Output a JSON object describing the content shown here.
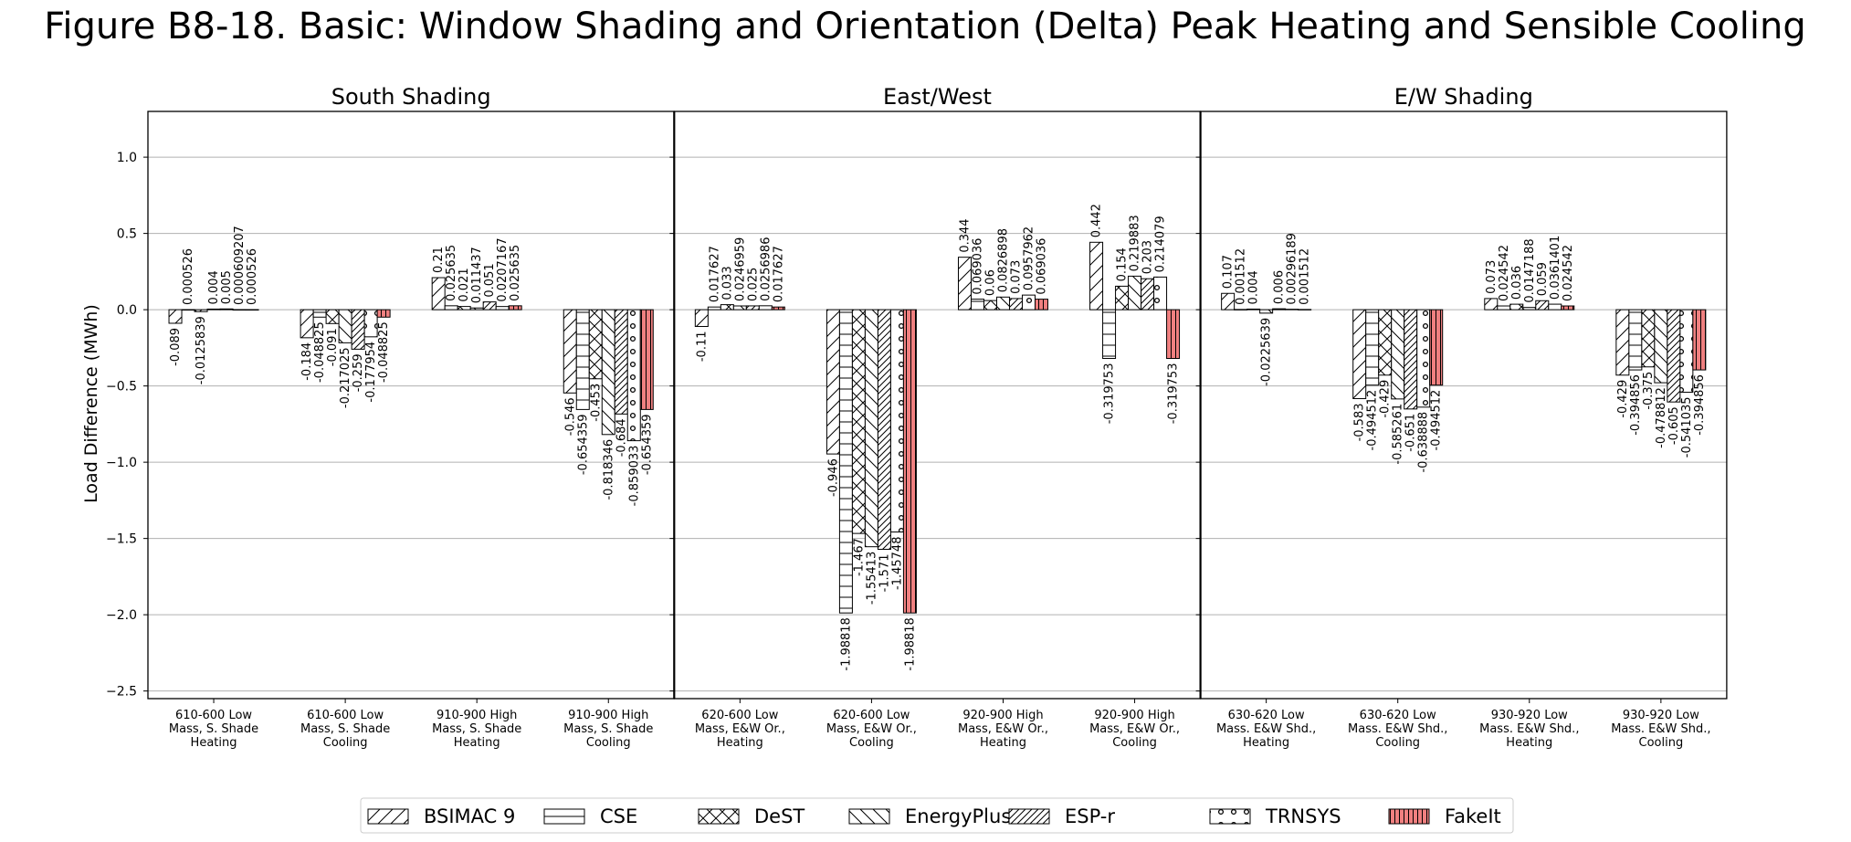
{
  "chart_data": {
    "type": "bar",
    "title": "Figure B8-18. Basic: Window Shading and Orientation (Delta) Peak Heating and Sensible Cooling",
    "ylabel": "Load Difference (MWh)",
    "ylim": [
      -2.55,
      1.3
    ],
    "yticks": [
      "1.0",
      "0.5",
      "0.0",
      "−0.5",
      "−1.0",
      "−1.5",
      "−2.0",
      "−2.5"
    ],
    "ytick_values": [
      1.0,
      0.5,
      0.0,
      -0.5,
      -1.0,
      -1.5,
      -2.0,
      -2.5
    ],
    "grid": true,
    "legend_position": "bottom-center",
    "series": [
      {
        "name": "BSIMAC 9",
        "hatch": "diag-fwd",
        "color": "#ffffff"
      },
      {
        "name": "CSE",
        "hatch": "horizontal",
        "color": "#ffffff"
      },
      {
        "name": "DeST",
        "hatch": "cross-diag",
        "color": "#ffffff"
      },
      {
        "name": "EnergyPlus",
        "hatch": "diag-back",
        "color": "#ffffff"
      },
      {
        "name": "ESP-r",
        "hatch": "diag-fwd-dense",
        "color": "#ffffff"
      },
      {
        "name": "TRNSYS",
        "hatch": "dots",
        "color": "#ffffff"
      },
      {
        "name": "FakeIt",
        "hatch": "vertical",
        "color": "#f08080"
      }
    ],
    "panels": [
      {
        "title": "South Shading",
        "groups": [
          {
            "label": [
              "610-600 Low",
              "Mass, S. Shade",
              "Heating"
            ],
            "values": [
              -0.089,
              0.000526,
              -0.0125839,
              0.004,
              0.005,
              0.000609207,
              0.000526
            ],
            "labels": [
              "-0.089",
              "0.000526",
              "-0.0125839",
              "0.004",
              "0.005",
              "0.000609207",
              "0.000526"
            ]
          },
          {
            "label": [
              "610-600 Low",
              "Mass, S. Shade",
              "Cooling"
            ],
            "values": [
              -0.184,
              -0.048825,
              -0.091,
              -0.217025,
              -0.259,
              -0.177954,
              -0.048825
            ],
            "labels": [
              "-0.184",
              "-0.048825",
              "-0.091",
              "-0.217025",
              "-0.259",
              "-0.177954",
              "-0.048825"
            ]
          },
          {
            "label": [
              "910-900 High",
              "Mass, S. Shade",
              "Heating"
            ],
            "values": [
              0.21,
              0.025635,
              0.021,
              0.011437,
              0.051,
              0.0207167,
              0.025635
            ],
            "labels": [
              "0.21",
              "0.025635",
              "0.021",
              "0.011437",
              "0.051",
              "0.0207167",
              "0.025635"
            ]
          },
          {
            "label": [
              "910-900 High",
              "Mass, S. Shade",
              "Cooling"
            ],
            "values": [
              -0.546,
              -0.654359,
              -0.453,
              -0.818346,
              -0.684,
              -0.859033,
              -0.654359
            ],
            "labels": [
              "-0.546",
              "-0.654359",
              "-0.453",
              "-0.818346",
              "-0.684",
              "-0.859033",
              "-0.654359"
            ]
          }
        ]
      },
      {
        "title": "East/West",
        "groups": [
          {
            "label": [
              "620-600 Low",
              "Mass, E&W Or.,",
              "Heating"
            ],
            "values": [
              -0.11,
              0.017627,
              0.033,
              0.0246959,
              0.025,
              0.0256986,
              0.017627
            ],
            "labels": [
              "-0.11",
              "0.017627",
              "0.033",
              "0.0246959",
              "0.025",
              "0.0256986",
              "0.017627"
            ]
          },
          {
            "label": [
              "620-600 Low",
              "Mass, E&W Or.,",
              "Cooling"
            ],
            "values": [
              -0.946,
              -1.98818,
              -1.467,
              -1.55413,
              -1.571,
              -1.45748,
              -1.98818
            ],
            "labels": [
              "-0.946",
              "-1.98818",
              "-1.467",
              "-1.55413",
              "-1.571",
              "-1.45748",
              "-1.98818"
            ]
          },
          {
            "label": [
              "920-900 High",
              "Mass, E&W Or.,",
              "Heating"
            ],
            "values": [
              0.344,
              0.069036,
              0.06,
              0.0826898,
              0.073,
              0.0957962,
              0.069036
            ],
            "labels": [
              "0.344",
              "0.069036",
              "0.06",
              "0.0826898",
              "0.073",
              "0.0957962",
              "0.069036"
            ]
          },
          {
            "label": [
              "920-900 High",
              "Mass, E&W Or.,",
              "Cooling"
            ],
            "values": [
              0.442,
              -0.319753,
              0.154,
              0.219883,
              0.203,
              0.214079,
              -0.319753
            ],
            "labels": [
              "0.442",
              "-0.319753",
              "0.154",
              "0.219883",
              "0.203",
              "0.214079",
              "-0.319753"
            ]
          }
        ]
      },
      {
        "title": "E/W Shading",
        "groups": [
          {
            "label": [
              "630-620 Low",
              "Mass. E&W Shd.,",
              "Heating"
            ],
            "values": [
              0.107,
              0.001512,
              0.004,
              -0.0225639,
              0.006,
              0.00296189,
              0.001512
            ],
            "labels": [
              "0.107",
              "0.001512",
              "0.004",
              "-0.0225639",
              "0.006",
              "0.00296189",
              "0.001512"
            ]
          },
          {
            "label": [
              "630-620 Low",
              "Mass. E&W Shd.,",
              "Cooling"
            ],
            "values": [
              -0.583,
              -0.494512,
              -0.429,
              -0.585261,
              -0.651,
              -0.638888,
              -0.494512
            ],
            "labels": [
              "-0.583",
              "-0.494512",
              "-0.429",
              "-0.585261",
              "-0.651",
              "-0.638888",
              "-0.494512"
            ]
          },
          {
            "label": [
              "930-920 Low",
              "Mass. E&W Shd.,",
              "Heating"
            ],
            "values": [
              0.073,
              0.024542,
              0.036,
              0.0147188,
              0.059,
              0.0361401,
              0.024542
            ],
            "labels": [
              "0.073",
              "0.024542",
              "0.036",
              "0.0147188",
              "0.059",
              "0.0361401",
              "0.024542"
            ]
          },
          {
            "label": [
              "930-920 Low",
              "Mass. E&W Shd.,",
              "Cooling"
            ],
            "values": [
              -0.429,
              -0.394856,
              -0.375,
              -0.478812,
              -0.605,
              -0.541035,
              -0.394856
            ],
            "labels": [
              "-0.429",
              "-0.394856",
              "-0.375",
              "-0.478812",
              "-0.605",
              "-0.541035",
              "-0.394856"
            ]
          }
        ]
      }
    ]
  }
}
